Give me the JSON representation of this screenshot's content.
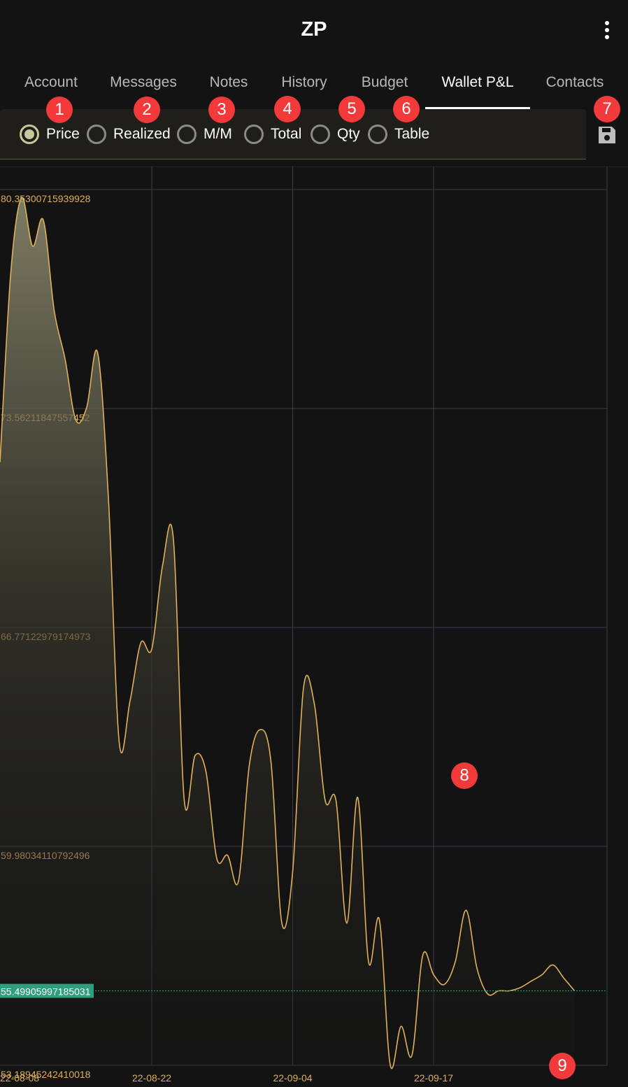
{
  "header": {
    "title": "ZP",
    "menu_icon": "more-vertical-icon"
  },
  "tabs": [
    {
      "label": "Account",
      "active": false
    },
    {
      "label": "Messages",
      "active": false
    },
    {
      "label": "Notes",
      "active": false
    },
    {
      "label": "History",
      "active": false
    },
    {
      "label": "Budget",
      "active": false
    },
    {
      "label": "Wallet P&L",
      "active": true
    },
    {
      "label": "Contacts",
      "active": false
    }
  ],
  "chart_mode": {
    "options": [
      {
        "label": "Price",
        "checked": true
      },
      {
        "label": "Realized",
        "checked": false
      },
      {
        "label": "M/M",
        "checked": false
      },
      {
        "label": "Total",
        "checked": false
      },
      {
        "label": "Qty",
        "checked": false
      },
      {
        "label": "Table",
        "checked": false
      }
    ],
    "save_icon": "save-icon"
  },
  "badges": [
    "1",
    "2",
    "3",
    "4",
    "5",
    "6",
    "7",
    "8",
    "9"
  ],
  "colors": {
    "background": "#131313",
    "line": "#e0b15a",
    "axis_label": "#dcae5c",
    "current_value_bg": "#2f9e7c",
    "grid": "#3a3d47",
    "badge": "#f23a3a"
  },
  "chart_data": {
    "type": "area",
    "xlabel": "",
    "ylabel": "",
    "x_ticks": [
      "22-08-08",
      "22-08-22",
      "22-09-04",
      "22-09-17"
    ],
    "y_ticks": [
      "80.35300715939928",
      "73.56211847557452",
      "66.77122979174973",
      "59.98034110792496",
      "53.18945242410018"
    ],
    "current_value": "55.49905997185031",
    "ylim": [
      53.18945242410018,
      80.35300715939928
    ],
    "grid": true,
    "series": [
      {
        "x": [
          "22-08-08",
          "22-08-09",
          "22-08-10",
          "22-08-11",
          "22-08-12",
          "22-08-13",
          "22-08-14",
          "22-08-15",
          "22-08-16",
          "22-08-17",
          "22-08-18",
          "22-08-19",
          "22-08-20",
          "22-08-21",
          "22-08-22",
          "22-08-23",
          "22-08-24",
          "22-08-25",
          "22-08-26",
          "22-08-27",
          "22-08-28",
          "22-08-29",
          "22-08-30",
          "22-08-31",
          "22-09-01",
          "22-09-02",
          "22-09-03",
          "22-09-04",
          "22-09-05",
          "22-09-06",
          "22-09-07",
          "22-09-08",
          "22-09-09",
          "22-09-10",
          "22-09-11",
          "22-09-12",
          "22-09-13",
          "22-09-14",
          "22-09-15",
          "22-09-16",
          "22-09-17",
          "22-09-18",
          "22-09-19",
          "22-09-20",
          "22-09-21",
          "22-09-22",
          "22-09-23",
          "22-09-24",
          "22-09-25",
          "22-09-26",
          "22-09-27",
          "22-09-28",
          "22-09-29",
          "22-09-30"
        ],
        "values": [
          71.9,
          77.8,
          80.1,
          78.6,
          79.4,
          76.6,
          75.1,
          73.2,
          73.6,
          75.3,
          70.8,
          63.2,
          64.5,
          66.3,
          66.1,
          68.7,
          69.5,
          61.4,
          62.8,
          62.3,
          59.6,
          59.7,
          58.9,
          62.5,
          63.6,
          62.6,
          57.6,
          59.2,
          64.9,
          64.4,
          61.4,
          61.4,
          57.6,
          61.5,
          56.4,
          57.7,
          53.2,
          54.4,
          53.5,
          56.6,
          56.0,
          55.7,
          56.4,
          58.0,
          56.2,
          55.4,
          55.5,
          55.5,
          55.6,
          55.8,
          56.0,
          56.3,
          55.9,
          55.5
        ]
      }
    ]
  }
}
